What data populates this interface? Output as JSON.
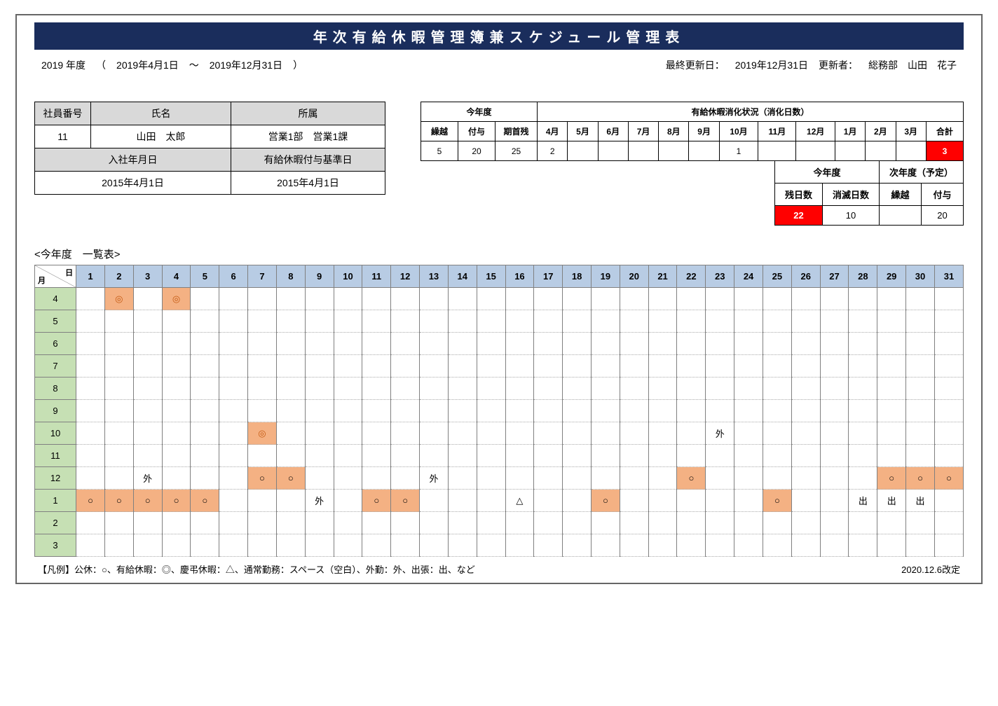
{
  "title": "年次有給休暇管理簿兼スケジュール管理表",
  "header": {
    "year_label": "2019 年度",
    "period_open": "（",
    "period_from": "2019年4月1日",
    "period_sep": "～",
    "period_to": "2019年12月31日",
    "period_close": "）",
    "update_label": "最終更新日：",
    "update_date": "2019年12月31日",
    "updater_label": "更新者：",
    "updater": "総務部　山田　花子"
  },
  "employee": {
    "emp_no_label": "社員番号",
    "emp_no": "11",
    "name_label": "氏名",
    "name": "山田　太郎",
    "dept_label": "所属",
    "dept": "営業1部　営業1課",
    "hire_label": "入社年月日",
    "hire_date": "2015年4月1日",
    "grant_label": "有給休暇付与基準日",
    "grant_date": "2015年4月1日"
  },
  "status": {
    "this_year_label": "今年度",
    "usage_label": "有給休暇消化状況（消化日数）",
    "carry_label": "繰越",
    "grant_label": "付与",
    "start_label": "期首残",
    "months": [
      "4月",
      "5月",
      "6月",
      "7月",
      "8月",
      "9月",
      "10月",
      "11月",
      "12月",
      "1月",
      "2月",
      "3月",
      "合計"
    ],
    "carry": "5",
    "grant": "20",
    "start": "25",
    "monthly": [
      "2",
      "",
      "",
      "",
      "",
      "",
      "1",
      "",
      "",
      "",
      "",
      "",
      "3"
    ],
    "summary": {
      "this_year_label": "今年度",
      "next_year_label": "次年度（予定）",
      "remain_label": "残日数",
      "expire_label": "消滅日数",
      "carry_label": "繰越",
      "grant_label": "付与",
      "remain": "22",
      "expire": "10",
      "carry": "",
      "grant": "20"
    }
  },
  "calendar": {
    "section_label": "<今年度　一覧表>",
    "corner_day": "日",
    "corner_month": "月",
    "days": [
      "1",
      "2",
      "3",
      "4",
      "5",
      "6",
      "7",
      "8",
      "9",
      "10",
      "11",
      "12",
      "13",
      "14",
      "15",
      "16",
      "17",
      "18",
      "19",
      "20",
      "21",
      "22",
      "23",
      "24",
      "25",
      "26",
      "27",
      "28",
      "29",
      "30",
      "31"
    ],
    "months": [
      "4",
      "5",
      "6",
      "7",
      "8",
      "9",
      "10",
      "11",
      "12",
      "1",
      "2",
      "3"
    ],
    "cells": {
      "4": {
        "2": {
          "t": "◎",
          "c": "mark-paid"
        },
        "4": {
          "t": "◎",
          "c": "mark-paid"
        }
      },
      "10": {
        "7": {
          "t": "◎",
          "c": "mark-paid"
        },
        "23": {
          "t": "外",
          "c": ""
        }
      },
      "12": {
        "3": {
          "t": "外",
          "c": ""
        },
        "7": {
          "t": "○",
          "c": "mark-holiday"
        },
        "8": {
          "t": "○",
          "c": "mark-holiday"
        },
        "13": {
          "t": "外",
          "c": ""
        },
        "22": {
          "t": "○",
          "c": "mark-holiday"
        },
        "29": {
          "t": "○",
          "c": "mark-holiday"
        },
        "30": {
          "t": "○",
          "c": "mark-holiday"
        },
        "31": {
          "t": "○",
          "c": "mark-holiday"
        }
      },
      "1": {
        "1": {
          "t": "○",
          "c": "mark-holiday"
        },
        "2": {
          "t": "○",
          "c": "mark-holiday"
        },
        "3": {
          "t": "○",
          "c": "mark-holiday"
        },
        "4": {
          "t": "○",
          "c": "mark-holiday"
        },
        "5": {
          "t": "○",
          "c": "mark-holiday"
        },
        "9": {
          "t": "外",
          "c": ""
        },
        "11": {
          "t": "○",
          "c": "mark-holiday"
        },
        "12": {
          "t": "○",
          "c": "mark-holiday"
        },
        "16": {
          "t": "△",
          "c": ""
        },
        "19": {
          "t": "○",
          "c": "mark-holiday"
        },
        "25": {
          "t": "○",
          "c": "mark-holiday"
        },
        "28": {
          "t": "出",
          "c": ""
        },
        "29": {
          "t": "出",
          "c": ""
        },
        "30": {
          "t": "出",
          "c": ""
        }
      }
    }
  },
  "footer": {
    "legend": "【凡例】公休：○、有給休暇：◎、慶弔休暇：△、通常勤務：スペース（空白）、外勤：外、出張：出、など",
    "revision": "2020.12.6改定"
  },
  "colors": {
    "title_bg": "#1a2d5c",
    "header_gray": "#d9d9d9",
    "cal_header": "#b8cce4",
    "month_col": "#c6e0b4",
    "mark_bg": "#f4b183",
    "red": "#ff0000"
  }
}
